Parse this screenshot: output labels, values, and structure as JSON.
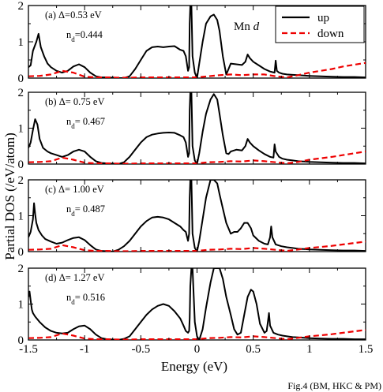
{
  "chart_data": [
    {
      "type": "line",
      "annotation_line1": "(a) Δ=0.53 eV",
      "annotation_line2_main": "n",
      "annotation_line2_sub": "d",
      "annotation_line2_rest": "=0.444",
      "label": "Mn",
      "label_italic": "d",
      "xlim": [
        -1.5,
        1.5
      ],
      "ylim": [
        0,
        2
      ],
      "series": [
        {
          "name": "up",
          "color": "#000000",
          "style": "solid",
          "x": [
            -1.5,
            -1.48,
            -1.46,
            -1.43,
            -1.41,
            -1.39,
            -1.36,
            -1.33,
            -1.3,
            -1.25,
            -1.2,
            -1.15,
            -1.1,
            -1.05,
            -1.0,
            -0.95,
            -0.9,
            -0.85,
            -0.8,
            -0.75,
            -0.7,
            -0.65,
            -0.6,
            -0.55,
            -0.5,
            -0.45,
            -0.4,
            -0.35,
            -0.3,
            -0.25,
            -0.2,
            -0.15,
            -0.12,
            -0.1,
            -0.08,
            -0.07,
            -0.065,
            -0.06,
            -0.05,
            -0.04,
            -0.02,
            0.0,
            0.02,
            0.05,
            0.08,
            0.12,
            0.15,
            0.18,
            0.2,
            0.23,
            0.26,
            0.28,
            0.3,
            0.35,
            0.4,
            0.43,
            0.45,
            0.47,
            0.5,
            0.55,
            0.6,
            0.65,
            0.69,
            0.7,
            0.71,
            0.73,
            0.76,
            0.8,
            0.85,
            0.9,
            0.95,
            1.0,
            1.1,
            1.2,
            1.3,
            1.4,
            1.5
          ],
          "y": [
            0.3,
            0.35,
            0.75,
            1.0,
            1.22,
            0.85,
            0.6,
            0.4,
            0.3,
            0.2,
            0.15,
            0.2,
            0.32,
            0.38,
            0.3,
            0.15,
            0.05,
            0.02,
            0.02,
            0.01,
            0.0,
            0.0,
            0.05,
            0.25,
            0.5,
            0.75,
            0.85,
            0.87,
            0.85,
            0.87,
            0.88,
            0.78,
            0.75,
            0.6,
            0.2,
            0.3,
            1.5,
            2.0,
            2.0,
            0.6,
            0.15,
            0.0,
            0.4,
            1.0,
            1.5,
            1.7,
            1.75,
            1.6,
            1.3,
            0.6,
            0.1,
            0.25,
            0.4,
            0.38,
            0.36,
            0.45,
            0.65,
            0.55,
            0.45,
            0.35,
            0.25,
            0.18,
            0.15,
            0.48,
            0.2,
            0.15,
            0.12,
            0.1,
            0.09,
            0.08,
            0.07,
            0.06,
            0.05,
            0.04,
            0.03,
            0.03,
            0.02
          ]
        },
        {
          "name": "down",
          "color": "#ee0000",
          "style": "dashed",
          "x": [
            -1.5,
            -1.4,
            -1.3,
            -1.2,
            -1.1,
            -1.0,
            -0.9,
            -0.8,
            -0.7,
            -0.6,
            -0.5,
            -0.4,
            -0.3,
            -0.2,
            -0.1,
            0.0,
            0.1,
            0.2,
            0.3,
            0.4,
            0.5,
            0.6,
            0.7,
            0.8,
            0.9,
            1.0,
            1.1,
            1.2,
            1.3,
            1.4,
            1.5
          ],
          "y": [
            0.05,
            0.06,
            0.1,
            0.2,
            0.15,
            0.04,
            0.02,
            0.02,
            0.01,
            0.01,
            0.02,
            0.02,
            0.02,
            0.02,
            0.02,
            0.02,
            0.05,
            0.08,
            0.1,
            0.08,
            0.1,
            0.1,
            0.05,
            0.02,
            0.08,
            0.15,
            0.2,
            0.25,
            0.32,
            0.37,
            0.42
          ]
        }
      ]
    },
    {
      "type": "line",
      "annotation_line1": "(b) Δ= 0.75 eV",
      "annotation_line2_main": "n",
      "annotation_line2_sub": "d",
      "annotation_line2_rest": "= 0.467",
      "xlim": [
        -1.5,
        1.5
      ],
      "ylim": [
        0,
        2
      ],
      "series": [
        {
          "name": "up",
          "color": "#000000",
          "style": "solid",
          "x": [
            -1.5,
            -1.48,
            -1.46,
            -1.44,
            -1.42,
            -1.4,
            -1.37,
            -1.33,
            -1.3,
            -1.25,
            -1.2,
            -1.15,
            -1.1,
            -1.05,
            -1.0,
            -0.95,
            -0.9,
            -0.85,
            -0.8,
            -0.75,
            -0.7,
            -0.65,
            -0.6,
            -0.55,
            -0.5,
            -0.45,
            -0.4,
            -0.35,
            -0.3,
            -0.25,
            -0.2,
            -0.15,
            -0.12,
            -0.1,
            -0.08,
            -0.07,
            -0.065,
            -0.06,
            -0.05,
            -0.04,
            -0.02,
            0.0,
            0.02,
            0.05,
            0.08,
            0.12,
            0.15,
            0.18,
            0.2,
            0.23,
            0.26,
            0.28,
            0.3,
            0.35,
            0.4,
            0.43,
            0.45,
            0.47,
            0.5,
            0.55,
            0.6,
            0.65,
            0.68,
            0.69,
            0.7,
            0.73,
            0.76,
            0.8,
            0.85,
            0.9,
            0.95,
            1.0,
            1.1,
            1.2,
            1.3,
            1.4,
            1.5
          ],
          "y": [
            0.45,
            0.6,
            0.95,
            1.25,
            1.1,
            0.7,
            0.45,
            0.35,
            0.3,
            0.25,
            0.2,
            0.25,
            0.35,
            0.4,
            0.35,
            0.2,
            0.08,
            0.03,
            0.02,
            0.01,
            0.0,
            0.05,
            0.2,
            0.4,
            0.6,
            0.75,
            0.82,
            0.85,
            0.87,
            0.88,
            0.87,
            0.8,
            0.75,
            0.6,
            0.2,
            0.3,
            1.5,
            2.0,
            2.0,
            0.5,
            0.1,
            0.0,
            0.3,
            0.9,
            1.4,
            1.8,
            1.95,
            1.8,
            1.4,
            0.8,
            0.3,
            0.28,
            0.35,
            0.4,
            0.38,
            0.5,
            0.7,
            0.6,
            0.5,
            0.38,
            0.28,
            0.2,
            0.18,
            0.55,
            0.35,
            0.2,
            0.15,
            0.12,
            0.1,
            0.08,
            0.07,
            0.06,
            0.05,
            0.04,
            0.03,
            0.03,
            0.02
          ]
        },
        {
          "name": "down",
          "color": "#ee0000",
          "style": "dashed",
          "x": [
            -1.5,
            -1.4,
            -1.3,
            -1.2,
            -1.1,
            -1.0,
            -0.9,
            -0.8,
            -0.7,
            -0.6,
            -0.5,
            -0.4,
            -0.3,
            -0.2,
            -0.1,
            0.0,
            0.1,
            0.2,
            0.3,
            0.4,
            0.5,
            0.6,
            0.7,
            0.8,
            0.9,
            1.0,
            1.1,
            1.2,
            1.3,
            1.4,
            1.5
          ],
          "y": [
            0.05,
            0.06,
            0.08,
            0.18,
            0.12,
            0.04,
            0.02,
            0.02,
            0.01,
            0.01,
            0.02,
            0.02,
            0.02,
            0.02,
            0.02,
            0.02,
            0.05,
            0.06,
            0.08,
            0.07,
            0.1,
            0.08,
            0.05,
            0.02,
            0.06,
            0.12,
            0.16,
            0.2,
            0.25,
            0.3,
            0.35
          ]
        }
      ]
    },
    {
      "type": "line",
      "annotation_line1": "(c) Δ= 1.00 eV",
      "annotation_line2_main": "n",
      "annotation_line2_sub": "d",
      "annotation_line2_rest": "= 0.487",
      "xlim": [
        -1.5,
        1.5
      ],
      "ylim": [
        0,
        2
      ],
      "series": [
        {
          "name": "up",
          "color": "#000000",
          "style": "solid",
          "x": [
            -1.5,
            -1.48,
            -1.46,
            -1.45,
            -1.44,
            -1.43,
            -1.41,
            -1.38,
            -1.35,
            -1.3,
            -1.25,
            -1.2,
            -1.15,
            -1.1,
            -1.05,
            -1.0,
            -0.95,
            -0.9,
            -0.85,
            -0.8,
            -0.75,
            -0.7,
            -0.65,
            -0.6,
            -0.55,
            -0.5,
            -0.45,
            -0.4,
            -0.35,
            -0.3,
            -0.25,
            -0.2,
            -0.15,
            -0.12,
            -0.1,
            -0.08,
            -0.07,
            -0.065,
            -0.06,
            -0.05,
            -0.04,
            -0.02,
            0.0,
            0.02,
            0.05,
            0.08,
            0.12,
            0.15,
            0.18,
            0.2,
            0.23,
            0.26,
            0.3,
            0.33,
            0.36,
            0.39,
            0.42,
            0.45,
            0.48,
            0.5,
            0.55,
            0.6,
            0.63,
            0.65,
            0.66,
            0.67,
            0.7,
            0.75,
            0.8,
            0.85,
            0.9,
            0.95,
            1.0,
            1.1,
            1.2,
            1.3,
            1.4,
            1.5
          ],
          "y": [
            0.4,
            0.55,
            0.9,
            1.35,
            1.05,
            0.8,
            0.6,
            0.45,
            0.35,
            0.28,
            0.22,
            0.25,
            0.32,
            0.38,
            0.4,
            0.32,
            0.18,
            0.06,
            0.02,
            0.01,
            0.0,
            0.05,
            0.15,
            0.3,
            0.5,
            0.7,
            0.85,
            0.95,
            0.97,
            0.95,
            0.9,
            0.8,
            0.7,
            0.6,
            0.55,
            0.3,
            0.5,
            1.5,
            2.0,
            2.0,
            0.5,
            0.1,
            0.0,
            0.3,
            0.9,
            1.5,
            2.0,
            2.0,
            1.9,
            1.6,
            1.2,
            0.8,
            0.5,
            0.55,
            0.55,
            0.65,
            0.8,
            0.8,
            0.65,
            0.45,
            0.3,
            0.22,
            0.2,
            0.4,
            0.7,
            0.4,
            0.2,
            0.15,
            0.12,
            0.1,
            0.08,
            0.07,
            0.06,
            0.05,
            0.04,
            0.03,
            0.03,
            0.02
          ]
        },
        {
          "name": "down",
          "color": "#ee0000",
          "style": "dashed",
          "x": [
            -1.5,
            -1.4,
            -1.3,
            -1.2,
            -1.1,
            -1.0,
            -0.9,
            -0.8,
            -0.7,
            -0.6,
            -0.5,
            -0.4,
            -0.3,
            -0.2,
            -0.1,
            0.0,
            0.1,
            0.2,
            0.3,
            0.4,
            0.5,
            0.6,
            0.7,
            0.8,
            0.9,
            1.0,
            1.1,
            1.2,
            1.3,
            1.4,
            1.5
          ],
          "y": [
            0.05,
            0.06,
            0.08,
            0.18,
            0.12,
            0.04,
            0.02,
            0.02,
            0.01,
            0.01,
            0.02,
            0.02,
            0.02,
            0.02,
            0.02,
            0.02,
            0.05,
            0.06,
            0.08,
            0.07,
            0.1,
            0.08,
            0.05,
            0.02,
            0.06,
            0.1,
            0.13,
            0.16,
            0.2,
            0.24,
            0.28
          ]
        }
      ]
    },
    {
      "type": "line",
      "annotation_line1": "(d) Δ= 1.27 eV",
      "annotation_line2_main": "n",
      "annotation_line2_sub": "d",
      "annotation_line2_rest": "= 0.516",
      "xlim": [
        -1.5,
        1.5
      ],
      "ylim": [
        0,
        2
      ],
      "series": [
        {
          "name": "up",
          "color": "#000000",
          "style": "solid",
          "x": [
            -1.5,
            -1.49,
            -1.48,
            -1.47,
            -1.46,
            -1.44,
            -1.4,
            -1.35,
            -1.3,
            -1.25,
            -1.2,
            -1.15,
            -1.1,
            -1.05,
            -1.0,
            -0.95,
            -0.9,
            -0.85,
            -0.8,
            -0.75,
            -0.7,
            -0.65,
            -0.6,
            -0.55,
            -0.5,
            -0.45,
            -0.4,
            -0.35,
            -0.3,
            -0.25,
            -0.2,
            -0.15,
            -0.12,
            -0.1,
            -0.08,
            -0.07,
            -0.065,
            -0.06,
            -0.05,
            -0.04,
            -0.02,
            0.0,
            0.02,
            0.05,
            0.08,
            0.12,
            0.15,
            0.18,
            0.2,
            0.23,
            0.26,
            0.3,
            0.33,
            0.36,
            0.39,
            0.42,
            0.45,
            0.48,
            0.5,
            0.53,
            0.56,
            0.6,
            0.62,
            0.63,
            0.64,
            0.65,
            0.68,
            0.72,
            0.76,
            0.8,
            0.85,
            0.9,
            0.95,
            1.0,
            1.1,
            1.2,
            1.3,
            1.4,
            1.5
          ],
          "y": [
            1.2,
            1.35,
            1.1,
            0.85,
            0.75,
            0.65,
            0.5,
            0.35,
            0.25,
            0.2,
            0.18,
            0.2,
            0.3,
            0.38,
            0.4,
            0.3,
            0.15,
            0.05,
            0.02,
            0.01,
            0.0,
            0.03,
            0.1,
            0.3,
            0.5,
            0.7,
            0.85,
            0.95,
            1.0,
            0.95,
            0.8,
            0.6,
            0.4,
            0.25,
            0.2,
            0.25,
            0.6,
            1.5,
            2.0,
            2.0,
            0.5,
            0.1,
            0.0,
            0.3,
            0.9,
            1.6,
            2.0,
            2.0,
            2.0,
            1.7,
            1.2,
            0.7,
            0.3,
            0.15,
            0.2,
            0.7,
            1.2,
            1.4,
            1.35,
            1.0,
            0.45,
            0.2,
            0.25,
            0.5,
            0.75,
            0.4,
            0.2,
            0.15,
            0.12,
            0.1,
            0.08,
            0.07,
            0.06,
            0.05,
            0.04,
            0.03,
            0.03,
            0.02,
            0.02
          ]
        },
        {
          "name": "down",
          "color": "#ee0000",
          "style": "dashed",
          "x": [
            -1.5,
            -1.4,
            -1.3,
            -1.2,
            -1.1,
            -1.0,
            -0.9,
            -0.8,
            -0.7,
            -0.6,
            -0.5,
            -0.4,
            -0.3,
            -0.2,
            -0.1,
            0.0,
            0.1,
            0.2,
            0.3,
            0.4,
            0.5,
            0.6,
            0.7,
            0.8,
            0.9,
            1.0,
            1.1,
            1.2,
            1.3,
            1.4,
            1.5
          ],
          "y": [
            0.05,
            0.06,
            0.08,
            0.18,
            0.12,
            0.04,
            0.02,
            0.02,
            0.01,
            0.01,
            0.02,
            0.02,
            0.02,
            0.02,
            0.02,
            0.02,
            0.05,
            0.06,
            0.08,
            0.07,
            0.1,
            0.08,
            0.05,
            0.02,
            0.06,
            0.1,
            0.13,
            0.16,
            0.2,
            0.24,
            0.28
          ]
        }
      ]
    }
  ],
  "axes": {
    "ylabel": "Partial DOS (/eV/atom)",
    "xlabel": "Energy (eV)",
    "x_ticks": [
      -1.5,
      -1,
      -0.5,
      0,
      0.5,
      1,
      1.5
    ],
    "x_tick_labels": [
      "-1.5",
      "-1",
      "-0.5",
      "0",
      "0.5",
      "1",
      "1.5"
    ],
    "y_ticks": [
      0,
      1,
      2
    ],
    "y_tick_labels": [
      "0",
      "1",
      "2"
    ]
  },
  "legend": {
    "entries": [
      {
        "label": "up",
        "color": "#000000",
        "style": "solid"
      },
      {
        "label": "down",
        "color": "#ee0000",
        "style": "dashed"
      }
    ]
  },
  "footer": "Fig.4 (BM, HKC & PM)"
}
